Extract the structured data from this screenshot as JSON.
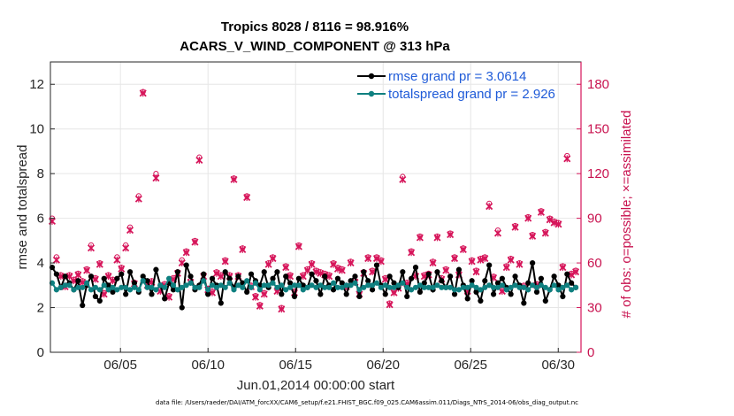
{
  "titles": {
    "line1": "Tropics 8028 / 8116 = 98.916%",
    "line2": "ACARS_V_WIND_COMPONENT @ 313 hPa"
  },
  "footer": "data file: /Users/raeder/DAI/ATM_forcXX/CAM6_setup/f.e21.FHIST_BGC.f09_025.CAM6assim.011/Diags_NTrS_2014-06/obs_diag_output.nc",
  "colors": {
    "rmse": "#000000",
    "spread": "#0f8080",
    "obs": "#d6155a"
  },
  "chart_data": {
    "type": "line",
    "title": "Tropics 8028 / 8116 = 98.916%",
    "subtitle": "ACARS_V_WIND_COMPONENT @ 313 hPa",
    "xlabel": "Jun.01,2014 00:00:00 start",
    "ylabel": "rmse and totalspread",
    "y2label": "# of obs: o=possible; ×=assimilated",
    "xlim": [
      1.0,
      31.3
    ],
    "ylim": [
      0,
      13
    ],
    "y2lim": [
      0,
      195
    ],
    "xticks": [
      5,
      10,
      15,
      20,
      25,
      30
    ],
    "xtick_labels": [
      "06/05",
      "06/10",
      "06/15",
      "06/20",
      "06/25",
      "06/30"
    ],
    "yticks": [
      0,
      2,
      4,
      6,
      8,
      10,
      12
    ],
    "y2ticks": [
      0,
      30,
      60,
      90,
      120,
      150,
      180
    ],
    "legend_position": "top-right",
    "legend": [
      "rmse grand pr = 3.0614",
      "totalspread grand pr = 2.926"
    ],
    "series": [
      {
        "name": "rmse grand pr = 3.0614",
        "axis": "left",
        "values": [
          3.8,
          3.5,
          2.9,
          3.4,
          3.1,
          2.8,
          3.2,
          2.1,
          3.0,
          3.4,
          2.5,
          2.3,
          3.3,
          3.0,
          2.7,
          3.3,
          3.5,
          2.6,
          3.6,
          3.1,
          2.7,
          3.4,
          3.2,
          2.6,
          3.7,
          3.0,
          2.4,
          3.1,
          2.8,
          3.6,
          2.0,
          3.9,
          3.4,
          2.8,
          3.0,
          3.5,
          2.6,
          3.3,
          3.0,
          2.2,
          3.6,
          3.3,
          2.9,
          3.4,
          3.1,
          2.7,
          3.5,
          3.2,
          3.0,
          3.6,
          2.9,
          3.3,
          3.6,
          2.6,
          3.4,
          3.1,
          2.5,
          3.3,
          3.0,
          2.9,
          3.5,
          3.2,
          2.6,
          3.4,
          3.0,
          2.8,
          3.3,
          3.1,
          2.6,
          3.2,
          3.4,
          2.5,
          3.6,
          3.2,
          2.8,
          3.9,
          3.0,
          2.6,
          3.4,
          3.1,
          2.9,
          3.6,
          2.5,
          3.3,
          3.8,
          2.7,
          3.1,
          3.5,
          2.8,
          3.6,
          3.2,
          2.9,
          3.4,
          2.6,
          3.7,
          3.0,
          2.4,
          3.2,
          2.7,
          2.3,
          3.2,
          3.9,
          2.6,
          3.1,
          3.3,
          2.9,
          2.6,
          3.4,
          3.0,
          2.2,
          3.1,
          4.0,
          2.7,
          3.3,
          2.3,
          2.8,
          3.4,
          3.0,
          2.5,
          3.5,
          3.1,
          2.9
        ]
      },
      {
        "name": "totalspread grand pr = 2.926",
        "axis": "left",
        "values": [
          3.1,
          2.8,
          2.9,
          3.0,
          3.0,
          2.8,
          2.9,
          2.9,
          3.1,
          2.8,
          2.9,
          2.8,
          3.0,
          2.8,
          2.9,
          2.8,
          2.9,
          2.9,
          2.8,
          2.9,
          2.8,
          3.2,
          2.9,
          2.9,
          2.8,
          3.0,
          2.9,
          3.3,
          3.0,
          2.8,
          2.9,
          3.0,
          3.1,
          2.9,
          2.9,
          3.2,
          2.8,
          3.0,
          2.9,
          3.0,
          2.9,
          3.1,
          2.8,
          3.0,
          2.9,
          3.2,
          2.9,
          3.1,
          2.8,
          3.0,
          3.0,
          3.1,
          2.9,
          3.0,
          2.8,
          2.9,
          3.0,
          3.0,
          2.8,
          2.9,
          3.0,
          2.9,
          3.0,
          2.9,
          2.9,
          3.1,
          2.9,
          2.9,
          3.0,
          3.0,
          3.1,
          2.8,
          2.9,
          3.0,
          3.0,
          3.1,
          2.9,
          3.0,
          2.9,
          2.9,
          3.0,
          3.1,
          2.9,
          2.8,
          2.9,
          3.0,
          2.9,
          2.9,
          2.9,
          3.0,
          2.9,
          2.9,
          2.9,
          2.8,
          2.8,
          2.9,
          2.9,
          3.0,
          2.9,
          2.8,
          2.9,
          3.0,
          2.9,
          2.9,
          3.0,
          2.8,
          2.9,
          3.0,
          2.9,
          2.9,
          2.8,
          3.0,
          2.9,
          3.0,
          2.9,
          2.8,
          3.0,
          2.8,
          2.9,
          3.0,
          2.8,
          2.9
        ]
      },
      {
        "name": "obs possible (o)",
        "axis": "right",
        "values": [
          90,
          64,
          52,
          45,
          52,
          49,
          53,
          48,
          56,
          72,
          50,
          60,
          40,
          52,
          49,
          64,
          57,
          72,
          84,
          47,
          105,
          175,
          46,
          48,
          120,
          42,
          46,
          38,
          50,
          54,
          62,
          68,
          48,
          75,
          131,
          52,
          43,
          41,
          54,
          52,
          62,
          52,
          117,
          52,
          70,
          105,
          45,
          38,
          32,
          40,
          60,
          64,
          42,
          30,
          58,
          52,
          41,
          72,
          52,
          56,
          60,
          55,
          54,
          53,
          52,
          60,
          57,
          56,
          45,
          61,
          48,
          40,
          54,
          64,
          55,
          64,
          62,
          50,
          33,
          41,
          44,
          118,
          47,
          68,
          52,
          78,
          52,
          53,
          61,
          78,
          50,
          56,
          80,
          64,
          53,
          70,
          42,
          62,
          55,
          63,
          64,
          100,
          51,
          82,
          42,
          58,
          63,
          85,
          60,
          45,
          91,
          79,
          46,
          95,
          81,
          90,
          88,
          87,
          58,
          132,
          53,
          55
        ]
      },
      {
        "name": "obs assimilated (×)",
        "axis": "right",
        "values": [
          88,
          62,
          51,
          44,
          51,
          48,
          52,
          47,
          55,
          70,
          49,
          59,
          39,
          51,
          48,
          62,
          56,
          70,
          82,
          46,
          103,
          174,
          45,
          47,
          117,
          41,
          45,
          37,
          49,
          53,
          60,
          67,
          47,
          74,
          129,
          51,
          42,
          40,
          53,
          51,
          61,
          51,
          116,
          51,
          69,
          104,
          44,
          37,
          31,
          39,
          59,
          63,
          41,
          29,
          57,
          51,
          40,
          71,
          51,
          55,
          59,
          54,
          53,
          52,
          51,
          59,
          56,
          55,
          44,
          60,
          47,
          39,
          53,
          63,
          54,
          63,
          61,
          49,
          32,
          40,
          43,
          116,
          46,
          67,
          51,
          77,
          51,
          52,
          60,
          77,
          49,
          55,
          79,
          63,
          52,
          69,
          41,
          61,
          54,
          62,
          63,
          98,
          50,
          80,
          41,
          57,
          62,
          84,
          59,
          44,
          90,
          78,
          45,
          94,
          80,
          89,
          87,
          86,
          57,
          130,
          52,
          54
        ]
      }
    ]
  }
}
